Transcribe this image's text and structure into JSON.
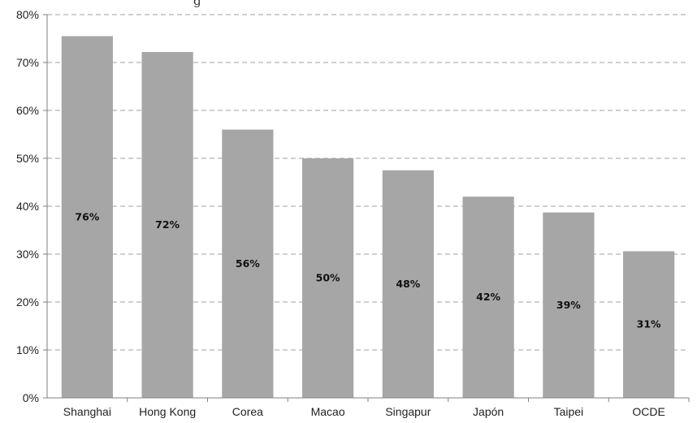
{
  "top_text_fragment": "g",
  "chart_data": {
    "type": "bar",
    "categories": [
      "Shanghai",
      "Hong Kong",
      "Corea",
      "Macao",
      "Singapur",
      "Japón",
      "Taipei",
      "OCDE"
    ],
    "values": [
      75.5,
      72.2,
      56.0,
      50.0,
      47.5,
      42.0,
      38.7,
      30.6
    ],
    "data_labels": [
      "76%",
      "72%",
      "56%",
      "50%",
      "48%",
      "42%",
      "39%",
      "31%"
    ],
    "yticks": [
      "0%",
      "10%",
      "20%",
      "30%",
      "40%",
      "50%",
      "60%",
      "70%",
      "80%"
    ],
    "ylim": [
      0,
      80
    ],
    "grid": true,
    "grid_style": "dashed",
    "bar_color": "#a6a6a6",
    "grid_color": "#a0a0a0",
    "axis_color": "#7f7f7f"
  }
}
